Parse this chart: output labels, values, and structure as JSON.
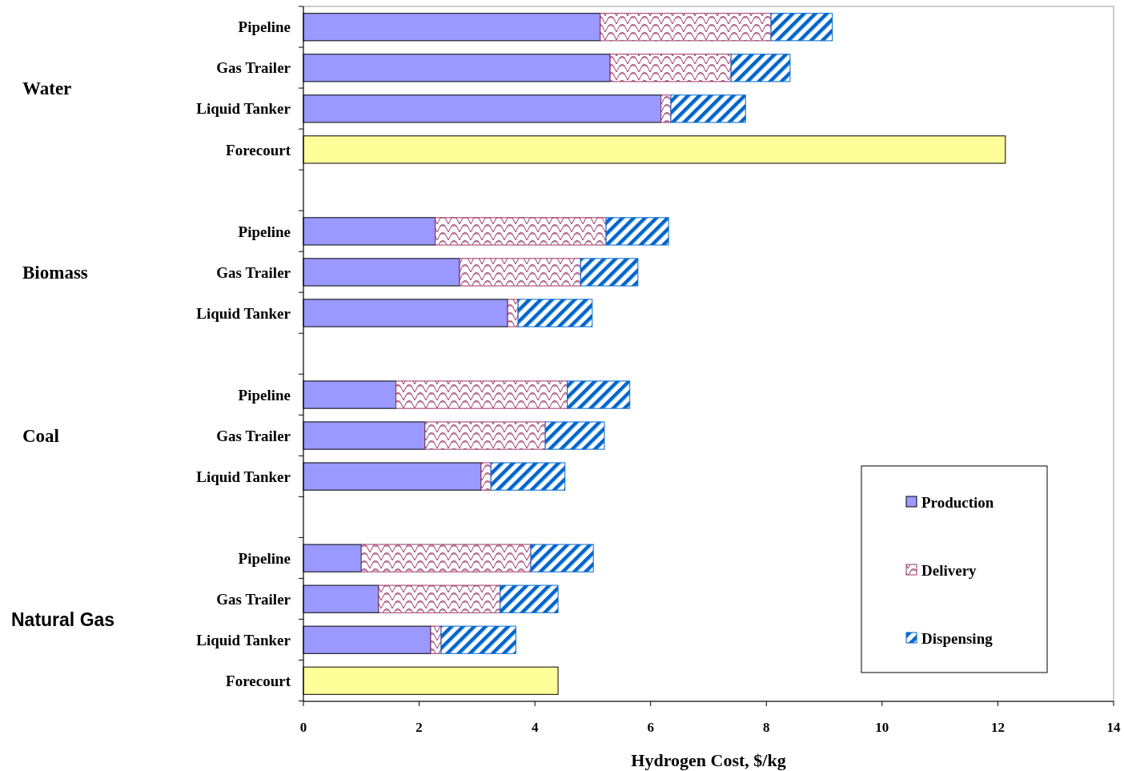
{
  "chart_data": {
    "type": "bar",
    "orientation": "horizontal",
    "stacked": true,
    "xlabel": "Hydrogen Cost, $/kg",
    "categories": [
      "Pipeline",
      "Gas Trailer",
      "Liquid Tanker",
      "Forecourt",
      null,
      "Pipeline",
      "Gas Trailer",
      "Liquid Tanker",
      null,
      "Pipeline",
      "Gas Trailer",
      "Liquid Tanker",
      null,
      "Pipeline",
      "Gas Trailer",
      "Liquid Tanker",
      "Forecourt"
    ],
    "series": [
      {
        "name": "Production",
        "color": "#9999ff",
        "values": [
          5.13,
          5.3,
          6.18,
          null,
          null,
          2.28,
          2.7,
          3.53,
          null,
          1.6,
          2.1,
          3.07,
          null,
          1.0,
          1.3,
          2.2,
          null
        ]
      },
      {
        "name": "Delivery",
        "color": "#993366",
        "values": [
          2.95,
          2.09,
          0.17,
          null,
          null,
          2.95,
          2.09,
          0.18,
          null,
          2.96,
          2.08,
          0.17,
          null,
          2.93,
          2.1,
          0.18,
          null
        ]
      },
      {
        "name": "Dispensing",
        "color": "#0066cc",
        "values": [
          1.06,
          1.02,
          1.29,
          null,
          null,
          1.08,
          0.99,
          1.28,
          null,
          1.08,
          1.02,
          1.28,
          null,
          1.08,
          1.0,
          1.29,
          null
        ]
      },
      {
        "color": "#ffff99",
        "values": [
          null,
          null,
          null,
          12.13,
          null,
          null,
          null,
          null,
          null,
          null,
          null,
          null,
          null,
          null,
          null,
          null,
          4.4
        ]
      }
    ],
    "annotations": [
      "Water",
      "Biomass",
      "Coal",
      "Natural Gas"
    ],
    "xlim": [
      0,
      14
    ],
    "xticks": [
      0,
      2,
      4,
      6,
      8,
      10,
      12,
      14
    ],
    "legend": "bottom right"
  }
}
